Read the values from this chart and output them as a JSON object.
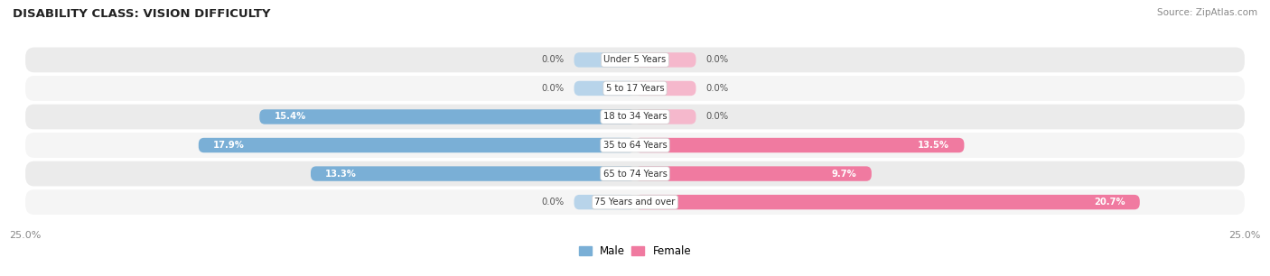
{
  "title": "DISABILITY CLASS: VISION DIFFICULTY",
  "source": "Source: ZipAtlas.com",
  "categories": [
    "Under 5 Years",
    "5 to 17 Years",
    "18 to 34 Years",
    "35 to 64 Years",
    "65 to 74 Years",
    "75 Years and over"
  ],
  "male_values": [
    0.0,
    0.0,
    15.4,
    17.9,
    13.3,
    0.0
  ],
  "female_values": [
    0.0,
    0.0,
    0.0,
    13.5,
    9.7,
    20.7
  ],
  "max_val": 25.0,
  "male_color": "#7aafd6",
  "female_color": "#f07aa0",
  "male_light": "#b8d4ea",
  "female_light": "#f5b8cc",
  "row_bg": "#ebebeb",
  "row_bg_alt": "#f5f5f5",
  "title_color": "#222222",
  "axis_label_color": "#888888",
  "legend_male_color": "#7aafd6",
  "legend_female_color": "#f07aa0",
  "stub_size": 2.5
}
